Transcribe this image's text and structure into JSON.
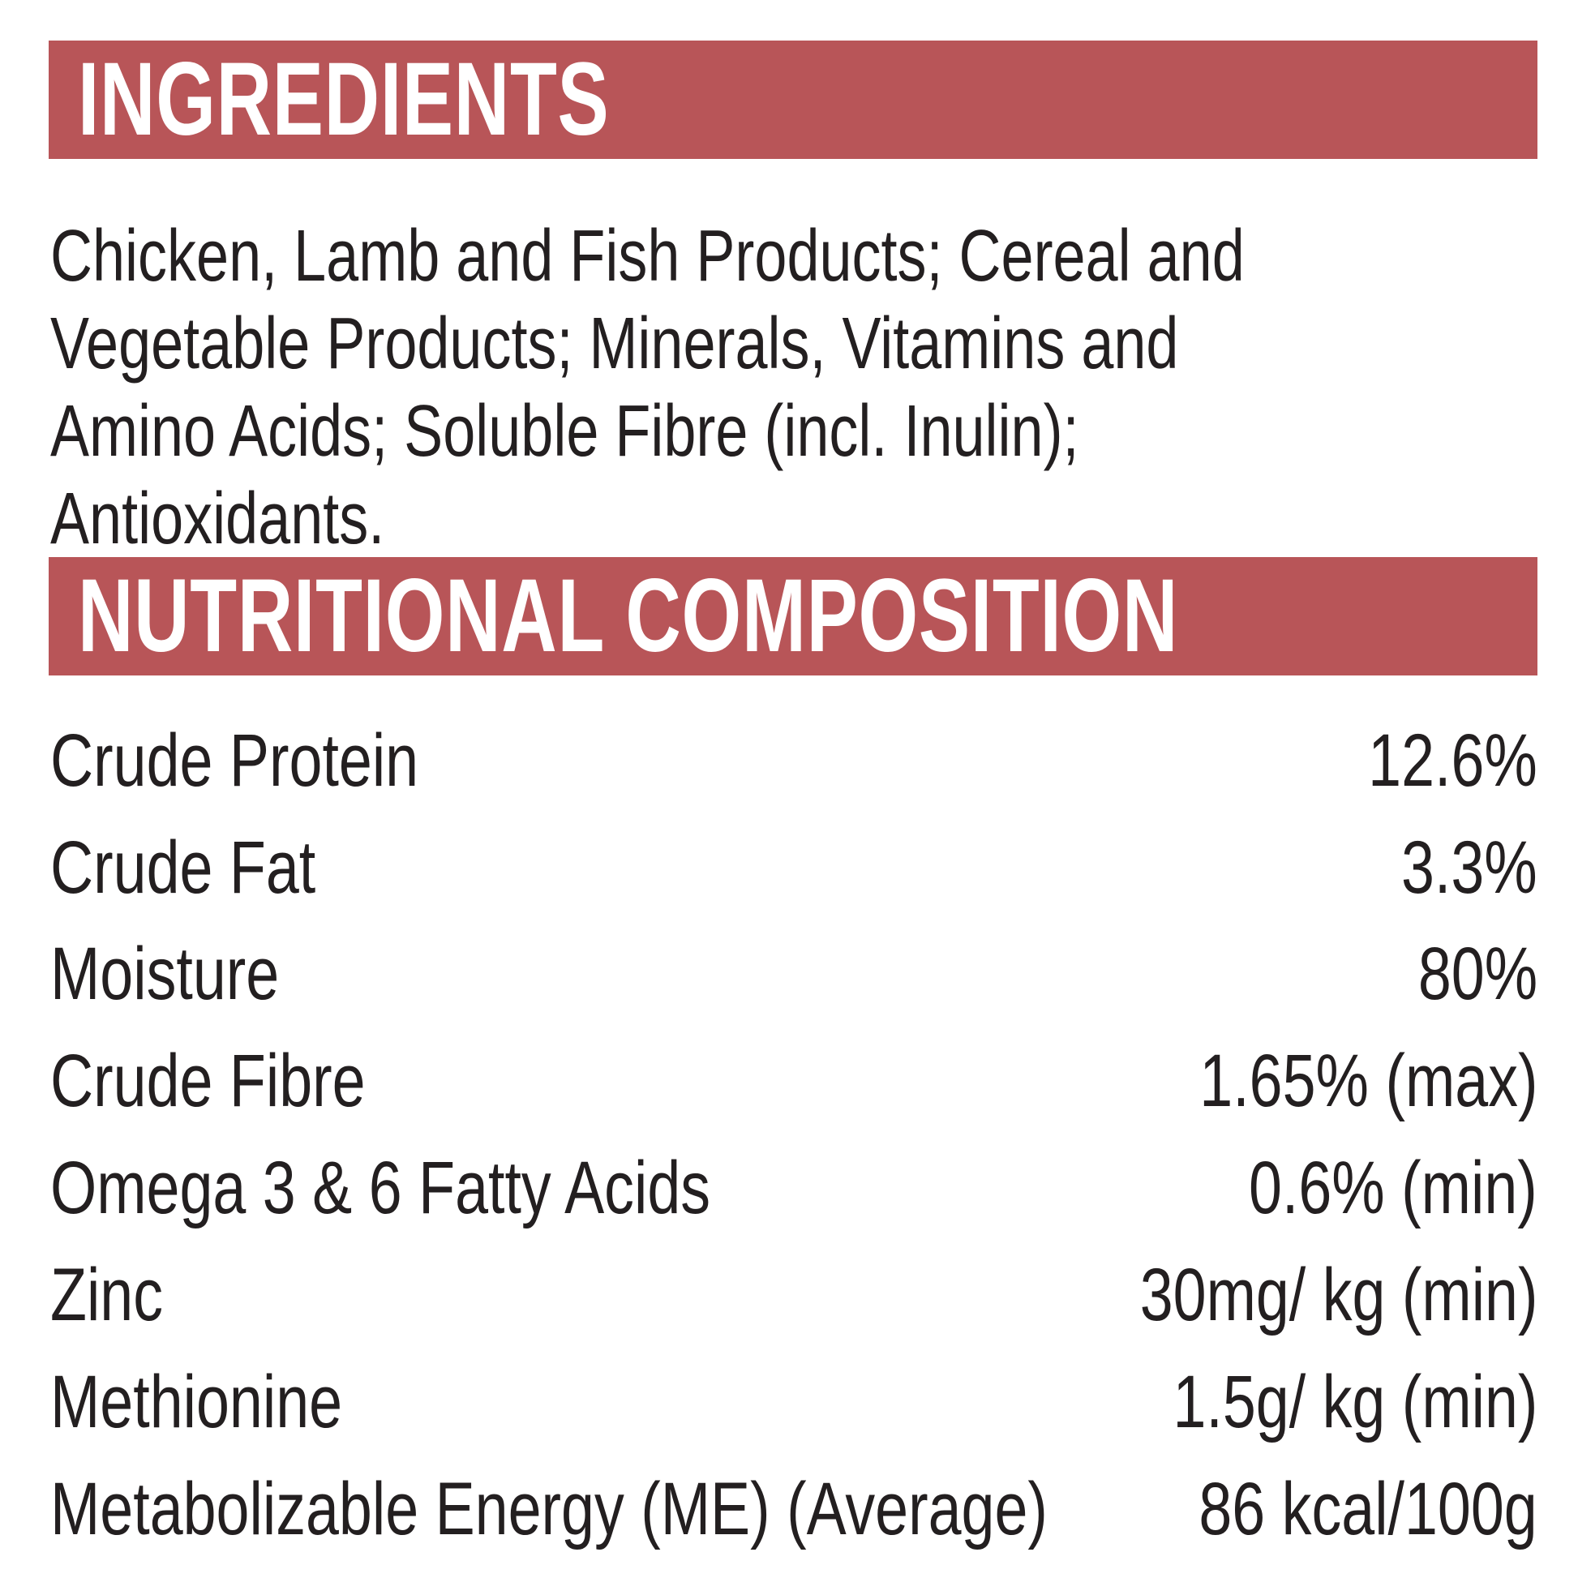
{
  "colors": {
    "banner": "#b85558",
    "text": "#231f20",
    "banner_text": "#ffffff"
  },
  "ingredients": {
    "title": "INGREDIENTS",
    "text": "Chicken, Lamb and Fish Products; Cereal and Vegetable Products; Minerals, Vitamins and Amino Acids; Soluble Fibre (incl. Inulin); Antioxidants."
  },
  "nutrition": {
    "title": "NUTRITIONAL COMPOSITION",
    "rows": [
      {
        "label": "Crude Protein",
        "value": "12.6%"
      },
      {
        "label": "Crude Fat",
        "value": "3.3%"
      },
      {
        "label": "Moisture",
        "value": "80%"
      },
      {
        "label": "Crude Fibre",
        "value": "1.65% (max)"
      },
      {
        "label": "Omega 3 & 6 Fatty Acids",
        "value": "0.6% (min)"
      },
      {
        "label": "Zinc",
        "value": "30mg/ kg (min)"
      },
      {
        "label": "Methionine",
        "value": "1.5g/ kg (min)"
      },
      {
        "label": "Metabolizable Energy (ME) (Average)",
        "value": "86 kcal/100g"
      }
    ]
  }
}
